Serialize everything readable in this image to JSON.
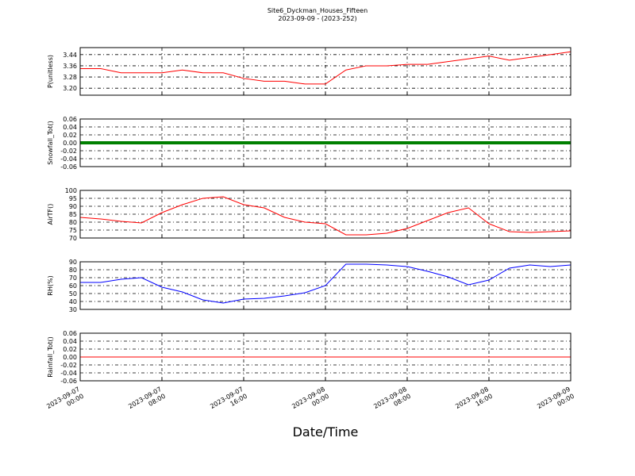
{
  "chart_data": [
    {
      "type": "line",
      "title": "Site6_Dyckman_Houses_Fifteen",
      "subtitle": "2023-09-09 - (2023-252)",
      "ylabel": "P(unitless)",
      "ylim": [
        3.15,
        3.49
      ],
      "yticks": [
        {
          "value": 3.2,
          "label": "3.20"
        },
        {
          "value": 3.28,
          "label": "3.28"
        },
        {
          "value": 3.36,
          "label": "3.36"
        },
        {
          "value": 3.44,
          "label": "3.44"
        }
      ],
      "xlim": [
        "2023-09-07 00:00",
        "2023-09-09 00:00"
      ],
      "grid": true,
      "x": [
        "2023-09-07 00:00",
        "2023-09-07 02:00",
        "2023-09-07 04:00",
        "2023-09-07 06:00",
        "2023-09-07 08:00",
        "2023-09-07 10:00",
        "2023-09-07 12:00",
        "2023-09-07 14:00",
        "2023-09-07 16:00",
        "2023-09-07 18:00",
        "2023-09-07 20:00",
        "2023-09-07 22:00",
        "2023-09-08 00:00",
        "2023-09-08 02:00",
        "2023-09-08 04:00",
        "2023-09-08 06:00",
        "2023-09-08 08:00",
        "2023-09-08 10:00",
        "2023-09-08 12:00",
        "2023-09-08 14:00",
        "2023-09-08 16:00",
        "2023-09-08 18:00",
        "2023-09-08 20:00",
        "2023-09-08 22:00",
        "2023-09-09 00:00"
      ],
      "series": [
        {
          "color": "#ff0000",
          "values": [
            3.34,
            3.34,
            3.31,
            3.31,
            3.31,
            3.33,
            3.31,
            3.31,
            3.27,
            3.25,
            3.25,
            3.23,
            3.23,
            3.33,
            3.36,
            3.36,
            3.37,
            3.37,
            3.39,
            3.41,
            3.43,
            3.4,
            3.42,
            3.44,
            3.46
          ]
        }
      ]
    },
    {
      "type": "line",
      "ylabel": "Snowfall_Tot()",
      "ylim": [
        -0.06,
        0.06
      ],
      "yticks": [
        -0.06,
        -0.04,
        -0.02,
        {
          "value": 0,
          "label": "0.00"
        },
        0.02,
        0.04,
        0.06
      ],
      "xlim": [
        "2023-09-07 00:00",
        "2023-09-09 00:00"
      ],
      "grid": true,
      "markers": true,
      "x": [
        "2023-09-07 00:00",
        "2023-09-07 02:00",
        "2023-09-07 04:00",
        "2023-09-07 06:00",
        "2023-09-07 08:00",
        "2023-09-07 10:00",
        "2023-09-07 12:00",
        "2023-09-07 14:00",
        "2023-09-07 16:00",
        "2023-09-07 18:00",
        "2023-09-07 20:00",
        "2023-09-07 22:00",
        "2023-09-08 00:00",
        "2023-09-08 02:00",
        "2023-09-08 04:00",
        "2023-09-08 06:00",
        "2023-09-08 08:00",
        "2023-09-08 10:00",
        "2023-09-08 12:00",
        "2023-09-08 14:00",
        "2023-09-08 16:00",
        "2023-09-08 18:00",
        "2023-09-08 20:00",
        "2023-09-08 22:00",
        "2023-09-09 00:00"
      ],
      "series": [
        {
          "color": "#008000",
          "values": [
            0,
            0,
            0,
            0,
            0,
            0,
            0,
            0,
            0,
            0,
            0,
            0,
            0,
            0,
            0,
            0,
            0,
            0,
            0,
            0,
            0,
            0,
            0,
            0,
            0
          ]
        }
      ]
    },
    {
      "type": "line",
      "ylabel": "AirTF()",
      "ylim": [
        70,
        100
      ],
      "yticks": [
        70,
        75,
        80,
        85,
        90,
        95,
        100
      ],
      "xlim": [
        "2023-09-07 00:00",
        "2023-09-09 00:00"
      ],
      "grid": true,
      "x": [
        "2023-09-07 00:00",
        "2023-09-07 02:00",
        "2023-09-07 04:00",
        "2023-09-07 06:00",
        "2023-09-07 08:00",
        "2023-09-07 10:00",
        "2023-09-07 12:00",
        "2023-09-07 14:00",
        "2023-09-07 16:00",
        "2023-09-07 18:00",
        "2023-09-07 20:00",
        "2023-09-07 22:00",
        "2023-09-08 00:00",
        "2023-09-08 02:00",
        "2023-09-08 04:00",
        "2023-09-08 06:00",
        "2023-09-08 08:00",
        "2023-09-08 10:00",
        "2023-09-08 12:00",
        "2023-09-08 14:00",
        "2023-09-08 16:00",
        "2023-09-08 18:00",
        "2023-09-08 20:00",
        "2023-09-08 22:00",
        "2023-09-09 00:00"
      ],
      "series": [
        {
          "color": "#ff0000",
          "values": [
            83,
            82,
            80.5,
            79.5,
            86,
            91,
            95,
            96,
            91,
            89,
            83,
            80,
            79,
            72,
            72,
            73,
            76,
            81,
            86,
            89,
            79,
            74,
            73.5,
            74,
            74.5
          ]
        }
      ]
    },
    {
      "type": "line",
      "ylabel": "RH(%)",
      "ylim": [
        30,
        90
      ],
      "yticks": [
        30,
        40,
        50,
        60,
        70,
        80,
        90
      ],
      "xlim": [
        "2023-09-07 00:00",
        "2023-09-09 00:00"
      ],
      "grid": true,
      "x": [
        "2023-09-07 00:00",
        "2023-09-07 02:00",
        "2023-09-07 04:00",
        "2023-09-07 06:00",
        "2023-09-07 08:00",
        "2023-09-07 10:00",
        "2023-09-07 12:00",
        "2023-09-07 14:00",
        "2023-09-07 16:00",
        "2023-09-07 18:00",
        "2023-09-07 20:00",
        "2023-09-07 22:00",
        "2023-09-08 00:00",
        "2023-09-08 02:00",
        "2023-09-08 04:00",
        "2023-09-08 06:00",
        "2023-09-08 08:00",
        "2023-09-08 10:00",
        "2023-09-08 12:00",
        "2023-09-08 14:00",
        "2023-09-08 16:00",
        "2023-09-08 18:00",
        "2023-09-08 20:00",
        "2023-09-08 22:00",
        "2023-09-09 00:00"
      ],
      "series": [
        {
          "color": "#0000ff",
          "values": [
            64,
            64,
            68,
            70,
            58,
            52,
            42,
            38,
            43,
            44,
            47,
            51,
            60,
            87,
            87,
            86,
            84,
            78,
            71,
            61,
            67,
            82,
            86,
            84,
            86
          ]
        }
      ]
    },
    {
      "type": "line",
      "ylabel": "Rainfall_Tot()",
      "xlabel": "Date/Time",
      "ylim": [
        -0.06,
        0.06
      ],
      "yticks": [
        -0.06,
        -0.04,
        -0.02,
        {
          "value": 0,
          "label": "0.00"
        },
        0.02,
        0.04,
        0.06
      ],
      "xlim": [
        "2023-09-07 00:00",
        "2023-09-09 00:00"
      ],
      "grid": true,
      "xticks": [
        "2023-09-07 00:00",
        "2023-09-07 08:00",
        "2023-09-07 16:00",
        "2023-09-08 00:00",
        "2023-09-08 08:00",
        "2023-09-08 16:00",
        "2023-09-09 00:00"
      ],
      "x": [
        "2023-09-07 00:00",
        "2023-09-07 02:00",
        "2023-09-07 04:00",
        "2023-09-07 06:00",
        "2023-09-07 08:00",
        "2023-09-07 10:00",
        "2023-09-07 12:00",
        "2023-09-07 14:00",
        "2023-09-07 16:00",
        "2023-09-07 18:00",
        "2023-09-07 20:00",
        "2023-09-07 22:00",
        "2023-09-08 00:00",
        "2023-09-08 02:00",
        "2023-09-08 04:00",
        "2023-09-08 06:00",
        "2023-09-08 08:00",
        "2023-09-08 10:00",
        "2023-09-08 12:00",
        "2023-09-08 14:00",
        "2023-09-08 16:00",
        "2023-09-08 18:00",
        "2023-09-08 20:00",
        "2023-09-08 22:00",
        "2023-09-09 00:00"
      ],
      "series": [
        {
          "color": "#ff0000",
          "values": [
            0,
            0,
            0,
            0,
            0,
            0,
            0,
            0,
            0,
            0,
            0,
            0,
            0,
            0,
            0,
            0,
            0,
            0,
            0,
            0,
            0,
            0,
            0,
            0,
            0
          ]
        }
      ]
    }
  ]
}
